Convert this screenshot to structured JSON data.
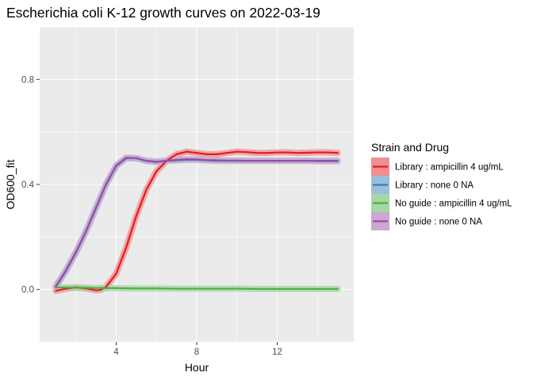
{
  "chart_data": {
    "type": "line",
    "title": "Escherichia coli K-12 growth curves on 2022-03-19",
    "xlabel": "Hour",
    "ylabel": "OD600_fit",
    "xlim": [
      0.2,
      15.8
    ],
    "ylim": [
      -0.2,
      1.0
    ],
    "x_ticks": [
      4,
      8,
      12
    ],
    "y_ticks": [
      0.0,
      0.4,
      0.8
    ],
    "x_tick_labels": [
      "4",
      "8",
      "12"
    ],
    "y_tick_labels": [
      "0.0",
      "0.4",
      "0.8"
    ],
    "grid": true,
    "legend": {
      "title": "Strain and Drug",
      "position": "right"
    },
    "series": [
      {
        "name": "Library : ampicillin 4 ug/mL",
        "color": "#e41a1c",
        "ribbon_color": "#f08f91",
        "x": [
          1,
          1.5,
          2,
          2.5,
          3,
          3.2,
          3.5,
          4,
          4.5,
          5,
          5.5,
          6,
          6.5,
          7,
          7.5,
          8,
          8.5,
          9,
          9.5,
          10,
          10.5,
          11,
          11.5,
          12,
          12.5,
          13,
          13.5,
          14,
          14.5,
          15
        ],
        "y": [
          -0.005,
          0.003,
          0.008,
          0.004,
          -0.003,
          -0.002,
          0.01,
          0.06,
          0.16,
          0.28,
          0.38,
          0.45,
          0.49,
          0.515,
          0.525,
          0.52,
          0.515,
          0.515,
          0.52,
          0.525,
          0.523,
          0.52,
          0.52,
          0.522,
          0.522,
          0.52,
          0.521,
          0.522,
          0.522,
          0.52
        ]
      },
      {
        "name": "Library : none 0 NA",
        "color": "#377eb8",
        "ribbon_color": "#9bbedb",
        "x": [
          1,
          1.5,
          2,
          2.5,
          3,
          3.5,
          4,
          4.5,
          5,
          5.5,
          6,
          6.5,
          7,
          7.5,
          8,
          8.5,
          9,
          9.5,
          10,
          10.5,
          11,
          11.5,
          12,
          12.5,
          13,
          13.5,
          14,
          14.5,
          15
        ],
        "y": [
          0.01,
          0.07,
          0.14,
          0.22,
          0.31,
          0.4,
          0.47,
          0.5,
          0.5,
          0.49,
          0.485,
          0.49,
          0.492,
          0.494,
          0.494,
          0.492,
          0.49,
          0.49,
          0.49,
          0.49,
          0.49,
          0.49,
          0.49,
          0.49,
          0.49,
          0.49,
          0.49,
          0.49,
          0.49
        ]
      },
      {
        "name": "No guide : ampicillin 4 ug/mL",
        "color": "#4daf4a",
        "ribbon_color": "#a6d7a4",
        "x": [
          1,
          2,
          3,
          4,
          5,
          6,
          7,
          8,
          9,
          10,
          11,
          12,
          13,
          14,
          15
        ],
        "y": [
          0.008,
          0.007,
          0.006,
          0.005,
          0.004,
          0.004,
          0.003,
          0.003,
          0.003,
          0.003,
          0.002,
          0.002,
          0.002,
          0.002,
          0.002
        ]
      },
      {
        "name": "No guide : none 0 NA",
        "color": "#984ea3",
        "ribbon_color": "#cba7d1",
        "x": [
          1,
          1.5,
          2,
          2.5,
          3,
          3.5,
          4,
          4.5,
          5,
          5.5,
          6,
          6.5,
          7,
          7.5,
          8,
          8.5,
          9,
          9.5,
          10,
          10.5,
          11,
          11.5,
          12,
          12.5,
          13,
          13.5,
          14,
          14.5,
          15
        ],
        "y": [
          0.012,
          0.072,
          0.142,
          0.222,
          0.312,
          0.402,
          0.472,
          0.502,
          0.5,
          0.49,
          0.487,
          0.49,
          0.494,
          0.496,
          0.495,
          0.493,
          0.492,
          0.491,
          0.491,
          0.49,
          0.49,
          0.49,
          0.49,
          0.49,
          0.49,
          0.49,
          0.489,
          0.489,
          0.489
        ]
      }
    ]
  }
}
